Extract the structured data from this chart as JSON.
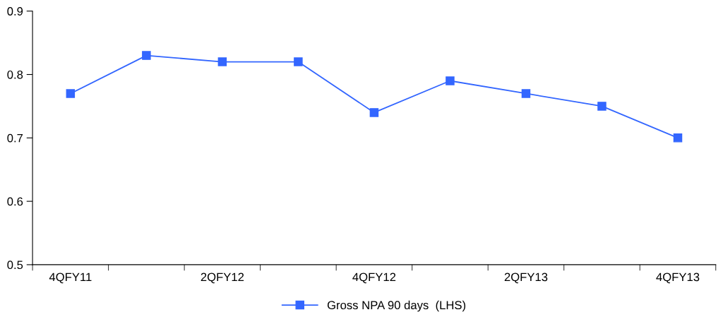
{
  "chart_data": {
    "type": "line",
    "categories": [
      "4QFY11",
      null,
      "2QFY12",
      null,
      "4QFY12",
      null,
      "2QFY13",
      null,
      "4QFY13"
    ],
    "series": [
      {
        "name": "Gross NPA 90 days  (LHS)",
        "color": "#3366ff",
        "values": [
          0.77,
          0.83,
          0.82,
          0.82,
          0.74,
          0.79,
          0.77,
          0.75,
          0.7
        ]
      }
    ],
    "ylim": [
      0.5,
      0.9
    ],
    "yticks": [
      0.5,
      0.6,
      0.7,
      0.8,
      0.9
    ],
    "grid": false,
    "legend": "bottom",
    "marker": "square",
    "line_style": "solid"
  }
}
